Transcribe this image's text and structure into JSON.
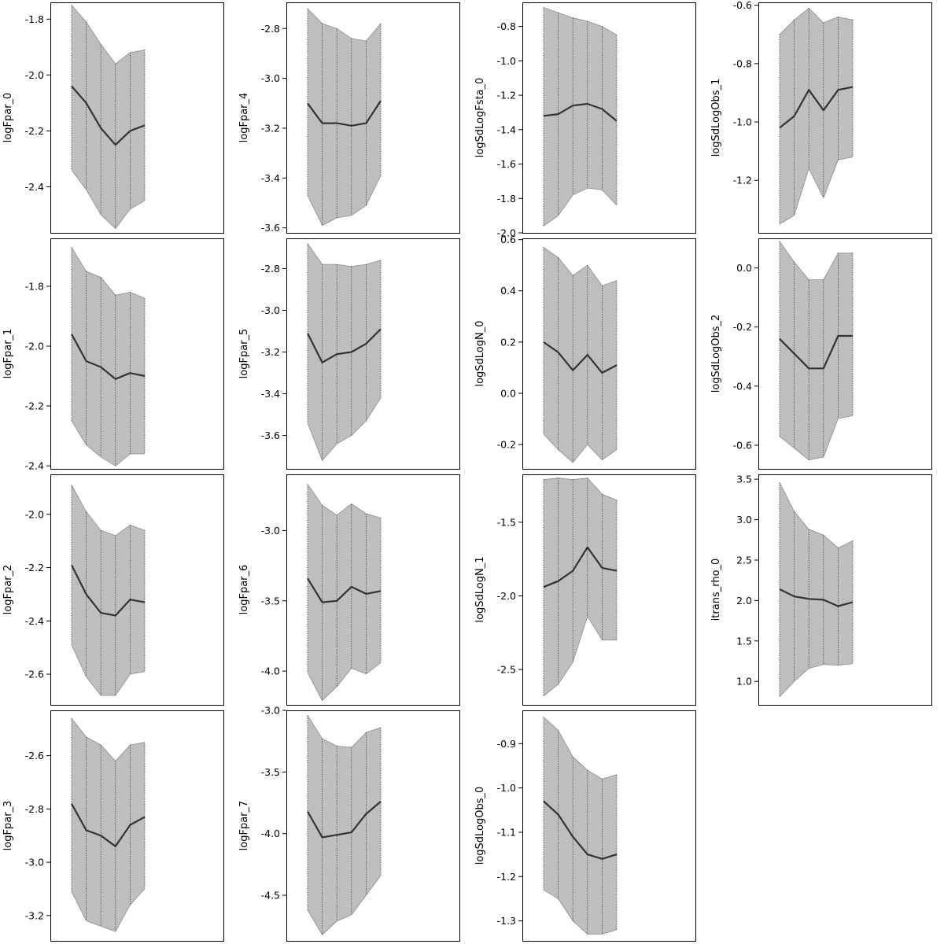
{
  "chart_data": [
    {
      "type": "area",
      "ylabel": "logFpar_0",
      "ylim": [
        -2.565,
        -1.74
      ],
      "yticks": [
        -2.4,
        -2.2,
        -2.0,
        -1.8
      ],
      "yticklabels": [
        "-2.4",
        "-2.2",
        "-2.0",
        "-1.8"
      ],
      "x": [
        1,
        2,
        3,
        4,
        5,
        6
      ],
      "median": [
        -2.04,
        -2.1,
        -2.19,
        -2.25,
        -2.2,
        -2.18
      ],
      "lower": [
        -2.34,
        -2.41,
        -2.5,
        -2.55,
        -2.48,
        -2.45
      ],
      "upper": [
        -1.75,
        -1.81,
        -1.89,
        -1.96,
        -1.92,
        -1.91
      ]
    },
    {
      "type": "area",
      "ylabel": "logFpar_4",
      "ylim": [
        -3.62,
        -2.695
      ],
      "yticks": [
        -3.6,
        -3.4,
        -3.2,
        -3.0,
        -2.8
      ],
      "yticklabels": [
        "-3.6",
        "-3.4",
        "-3.2",
        "-3.0",
        "-2.8"
      ],
      "x": [
        1,
        2,
        3,
        4,
        5,
        6
      ],
      "median": [
        -3.1,
        -3.18,
        -3.18,
        -3.19,
        -3.18,
        -3.09
      ],
      "lower": [
        -3.47,
        -3.59,
        -3.56,
        -3.55,
        -3.51,
        -3.39
      ],
      "upper": [
        -2.72,
        -2.78,
        -2.8,
        -2.84,
        -2.85,
        -2.78
      ]
    },
    {
      "type": "area",
      "ylabel": "logSdLogFsta_0",
      "ylim": [
        -2.0,
        -0.66
      ],
      "yticks": [
        -2.0,
        -1.8,
        -1.6,
        -1.4,
        -1.2,
        -1.0,
        -0.8
      ],
      "yticklabels": [
        "-2.0",
        "-1.8",
        "-1.6",
        "-1.4",
        "-1.2",
        "-1.0",
        "-0.8"
      ],
      "x": [
        1,
        2,
        3,
        4,
        5,
        6
      ],
      "median": [
        -1.32,
        -1.31,
        -1.26,
        -1.25,
        -1.28,
        -1.35
      ],
      "lower": [
        -1.96,
        -1.9,
        -1.78,
        -1.74,
        -1.75,
        -1.84
      ],
      "upper": [
        -0.69,
        -0.72,
        -0.75,
        -0.77,
        -0.8,
        -0.85
      ]
    },
    {
      "type": "area",
      "ylabel": "logSdLogObs_1",
      "ylim": [
        -1.38,
        -0.59
      ],
      "yticks": [
        -1.2,
        -1.0,
        -0.8,
        -0.6
      ],
      "yticklabels": [
        "-1.2",
        "-1.0",
        "-0.8",
        "-0.6"
      ],
      "x": [
        1,
        2,
        3,
        4,
        5,
        6
      ],
      "median": [
        -1.02,
        -0.98,
        -0.89,
        -0.96,
        -0.89,
        -0.88
      ],
      "lower": [
        -1.35,
        -1.32,
        -1.16,
        -1.26,
        -1.13,
        -1.12
      ],
      "upper": [
        -0.7,
        -0.65,
        -0.61,
        -0.66,
        -0.64,
        -0.65
      ]
    },
    {
      "type": "area",
      "ylabel": "logFpar_1",
      "ylim": [
        -2.41,
        -1.64
      ],
      "yticks": [
        -2.4,
        -2.2,
        -2.0,
        -1.8
      ],
      "yticklabels": [
        "-2.4",
        "-2.2",
        "-2.0",
        "-1.8"
      ],
      "x": [
        1,
        2,
        3,
        4,
        5,
        6
      ],
      "median": [
        -1.96,
        -2.05,
        -2.07,
        -2.11,
        -2.09,
        -2.1
      ],
      "lower": [
        -2.25,
        -2.33,
        -2.37,
        -2.4,
        -2.36,
        -2.36
      ],
      "upper": [
        -1.67,
        -1.75,
        -1.77,
        -1.83,
        -1.82,
        -1.84
      ]
    },
    {
      "type": "area",
      "ylabel": "logFpar_5",
      "ylim": [
        -3.76,
        -2.655
      ],
      "yticks": [
        -3.6,
        -3.4,
        -3.2,
        -3.0,
        -2.8
      ],
      "yticklabels": [
        "-3.6",
        "-3.4",
        "-3.2",
        "-3.0",
        "-2.8"
      ],
      "x": [
        1,
        2,
        3,
        4,
        5,
        6
      ],
      "median": [
        -3.11,
        -3.25,
        -3.21,
        -3.2,
        -3.16,
        -3.09
      ],
      "lower": [
        -3.54,
        -3.72,
        -3.64,
        -3.6,
        -3.53,
        -3.42
      ],
      "upper": [
        -2.68,
        -2.78,
        -2.78,
        -2.79,
        -2.78,
        -2.76
      ]
    },
    {
      "type": "area",
      "ylabel": "logSdLogN_0",
      "ylim": [
        -0.295,
        0.605
      ],
      "yticks": [
        -0.2,
        0.0,
        0.2,
        0.4,
        0.6
      ],
      "yticklabels": [
        "-0.2",
        "0.0",
        "0.2",
        "0.4",
        "0.6"
      ],
      "x": [
        1,
        2,
        3,
        4,
        5,
        6
      ],
      "median": [
        0.2,
        0.16,
        0.09,
        0.15,
        0.08,
        0.11
      ],
      "lower": [
        -0.16,
        -0.22,
        -0.27,
        -0.2,
        -0.26,
        -0.22
      ],
      "upper": [
        0.57,
        0.53,
        0.46,
        0.5,
        0.42,
        0.44
      ]
    },
    {
      "type": "area",
      "ylabel": "logSdLogObs_2",
      "ylim": [
        -0.68,
        0.1
      ],
      "yticks": [
        -0.6,
        -0.4,
        -0.2,
        0.0
      ],
      "yticklabels": [
        "-0.6",
        "-0.4",
        "-0.2",
        "0.0"
      ],
      "x": [
        1,
        2,
        3,
        4,
        5,
        6
      ],
      "median": [
        -0.24,
        -0.29,
        -0.34,
        -0.34,
        -0.23,
        -0.23
      ],
      "lower": [
        -0.57,
        -0.61,
        -0.65,
        -0.64,
        -0.51,
        -0.5
      ],
      "upper": [
        0.09,
        0.02,
        -0.04,
        -0.04,
        0.05,
        0.05
      ]
    },
    {
      "type": "area",
      "ylabel": "logFpar_2",
      "ylim": [
        -2.715,
        -1.85
      ],
      "yticks": [
        -2.6,
        -2.4,
        -2.2,
        -2.0
      ],
      "yticklabels": [
        "-2.6",
        "-2.4",
        "-2.2",
        "-2.0"
      ],
      "x": [
        1,
        2,
        3,
        4,
        5,
        6
      ],
      "median": [
        -2.19,
        -2.3,
        -2.37,
        -2.38,
        -2.32,
        -2.33
      ],
      "lower": [
        -2.49,
        -2.61,
        -2.68,
        -2.68,
        -2.6,
        -2.59
      ],
      "upper": [
        -1.89,
        -1.99,
        -2.06,
        -2.08,
        -2.04,
        -2.06
      ]
    },
    {
      "type": "area",
      "ylabel": "logFpar_6",
      "ylim": [
        -4.24,
        -2.6
      ],
      "yticks": [
        -4.0,
        -3.5,
        -3.0
      ],
      "yticklabels": [
        "-4.0",
        "-3.5",
        "-3.0"
      ],
      "x": [
        1,
        2,
        3,
        4,
        5,
        6
      ],
      "median": [
        -3.34,
        -3.51,
        -3.5,
        -3.4,
        -3.45,
        -3.43
      ],
      "lower": [
        -4.01,
        -4.21,
        -4.11,
        -3.98,
        -4.02,
        -3.94
      ],
      "upper": [
        -2.67,
        -2.82,
        -2.89,
        -2.81,
        -2.88,
        -2.91
      ]
    },
    {
      "type": "area",
      "ylabel": "logSdLogN_1",
      "ylim": [
        -2.74,
        -1.175
      ],
      "yticks": [
        -2.5,
        -2.0,
        -1.5
      ],
      "yticklabels": [
        "-2.5",
        "-2.0",
        "-1.5"
      ],
      "x": [
        1,
        2,
        3,
        4,
        5,
        6
      ],
      "median": [
        -1.94,
        -1.9,
        -1.83,
        -1.67,
        -1.81,
        -1.83
      ],
      "lower": [
        -2.68,
        -2.6,
        -2.45,
        -2.14,
        -2.3,
        -2.3
      ],
      "upper": [
        -1.21,
        -1.2,
        -1.21,
        -1.2,
        -1.31,
        -1.35
      ]
    },
    {
      "type": "area",
      "ylabel": "itrans_rho_0",
      "ylim": [
        0.71,
        3.56
      ],
      "yticks": [
        1.0,
        1.5,
        2.0,
        2.5,
        3.0,
        3.5
      ],
      "yticklabels": [
        "1.0",
        "1.5",
        "2.0",
        "2.5",
        "3.0",
        "3.5"
      ],
      "x": [
        1,
        2,
        3,
        4,
        5,
        6
      ],
      "median": [
        2.14,
        2.05,
        2.02,
        2.01,
        1.93,
        1.98
      ],
      "lower": [
        0.81,
        1.0,
        1.16,
        1.21,
        1.2,
        1.22
      ],
      "upper": [
        3.46,
        3.1,
        2.88,
        2.81,
        2.65,
        2.74
      ]
    },
    {
      "type": "area",
      "ylabel": "logFpar_3",
      "ylim": [
        -3.295,
        -2.43
      ],
      "yticks": [
        -3.2,
        -3.0,
        -2.8,
        -2.6
      ],
      "yticklabels": [
        "-3.2",
        "-3.0",
        "-2.8",
        "-2.6"
      ],
      "x": [
        1,
        2,
        3,
        4,
        5,
        6
      ],
      "median": [
        -2.78,
        -2.88,
        -2.9,
        -2.94,
        -2.86,
        -2.83
      ],
      "lower": [
        -3.11,
        -3.22,
        -3.24,
        -3.26,
        -3.16,
        -3.1
      ],
      "upper": [
        -2.46,
        -2.53,
        -2.56,
        -2.62,
        -2.56,
        -2.55
      ]
    },
    {
      "type": "area",
      "ylabel": "logFpar_7",
      "ylim": [
        -4.87,
        -3.0
      ],
      "yticks": [
        -4.5,
        -4.0,
        -3.5,
        -3.0
      ],
      "yticklabels": [
        "-4.5",
        "-4.0",
        "-3.5",
        "-3.0"
      ],
      "x": [
        1,
        2,
        3,
        4,
        5,
        6
      ],
      "median": [
        -3.82,
        -4.03,
        -4.01,
        -3.99,
        -3.84,
        -3.74
      ],
      "lower": [
        -4.62,
        -4.82,
        -4.71,
        -4.66,
        -4.5,
        -4.34
      ],
      "upper": [
        -3.04,
        -3.23,
        -3.29,
        -3.3,
        -3.18,
        -3.14
      ]
    },
    {
      "type": "area",
      "ylabel": "logSdLogObs_0",
      "ylim": [
        -1.345,
        -0.825
      ],
      "yticks": [
        -1.3,
        -1.2,
        -1.1,
        -1.0,
        -0.9
      ],
      "yticklabels": [
        "-1.3",
        "-1.2",
        "-1.1",
        "-1.0",
        "-0.9"
      ],
      "x": [
        1,
        2,
        3,
        4,
        5,
        6
      ],
      "median": [
        -1.03,
        -1.06,
        -1.11,
        -1.15,
        -1.16,
        -1.15
      ],
      "lower": [
        -1.23,
        -1.25,
        -1.3,
        -1.33,
        -1.33,
        -1.32
      ],
      "upper": [
        -0.84,
        -0.87,
        -0.93,
        -0.96,
        -0.98,
        -0.97
      ]
    }
  ]
}
